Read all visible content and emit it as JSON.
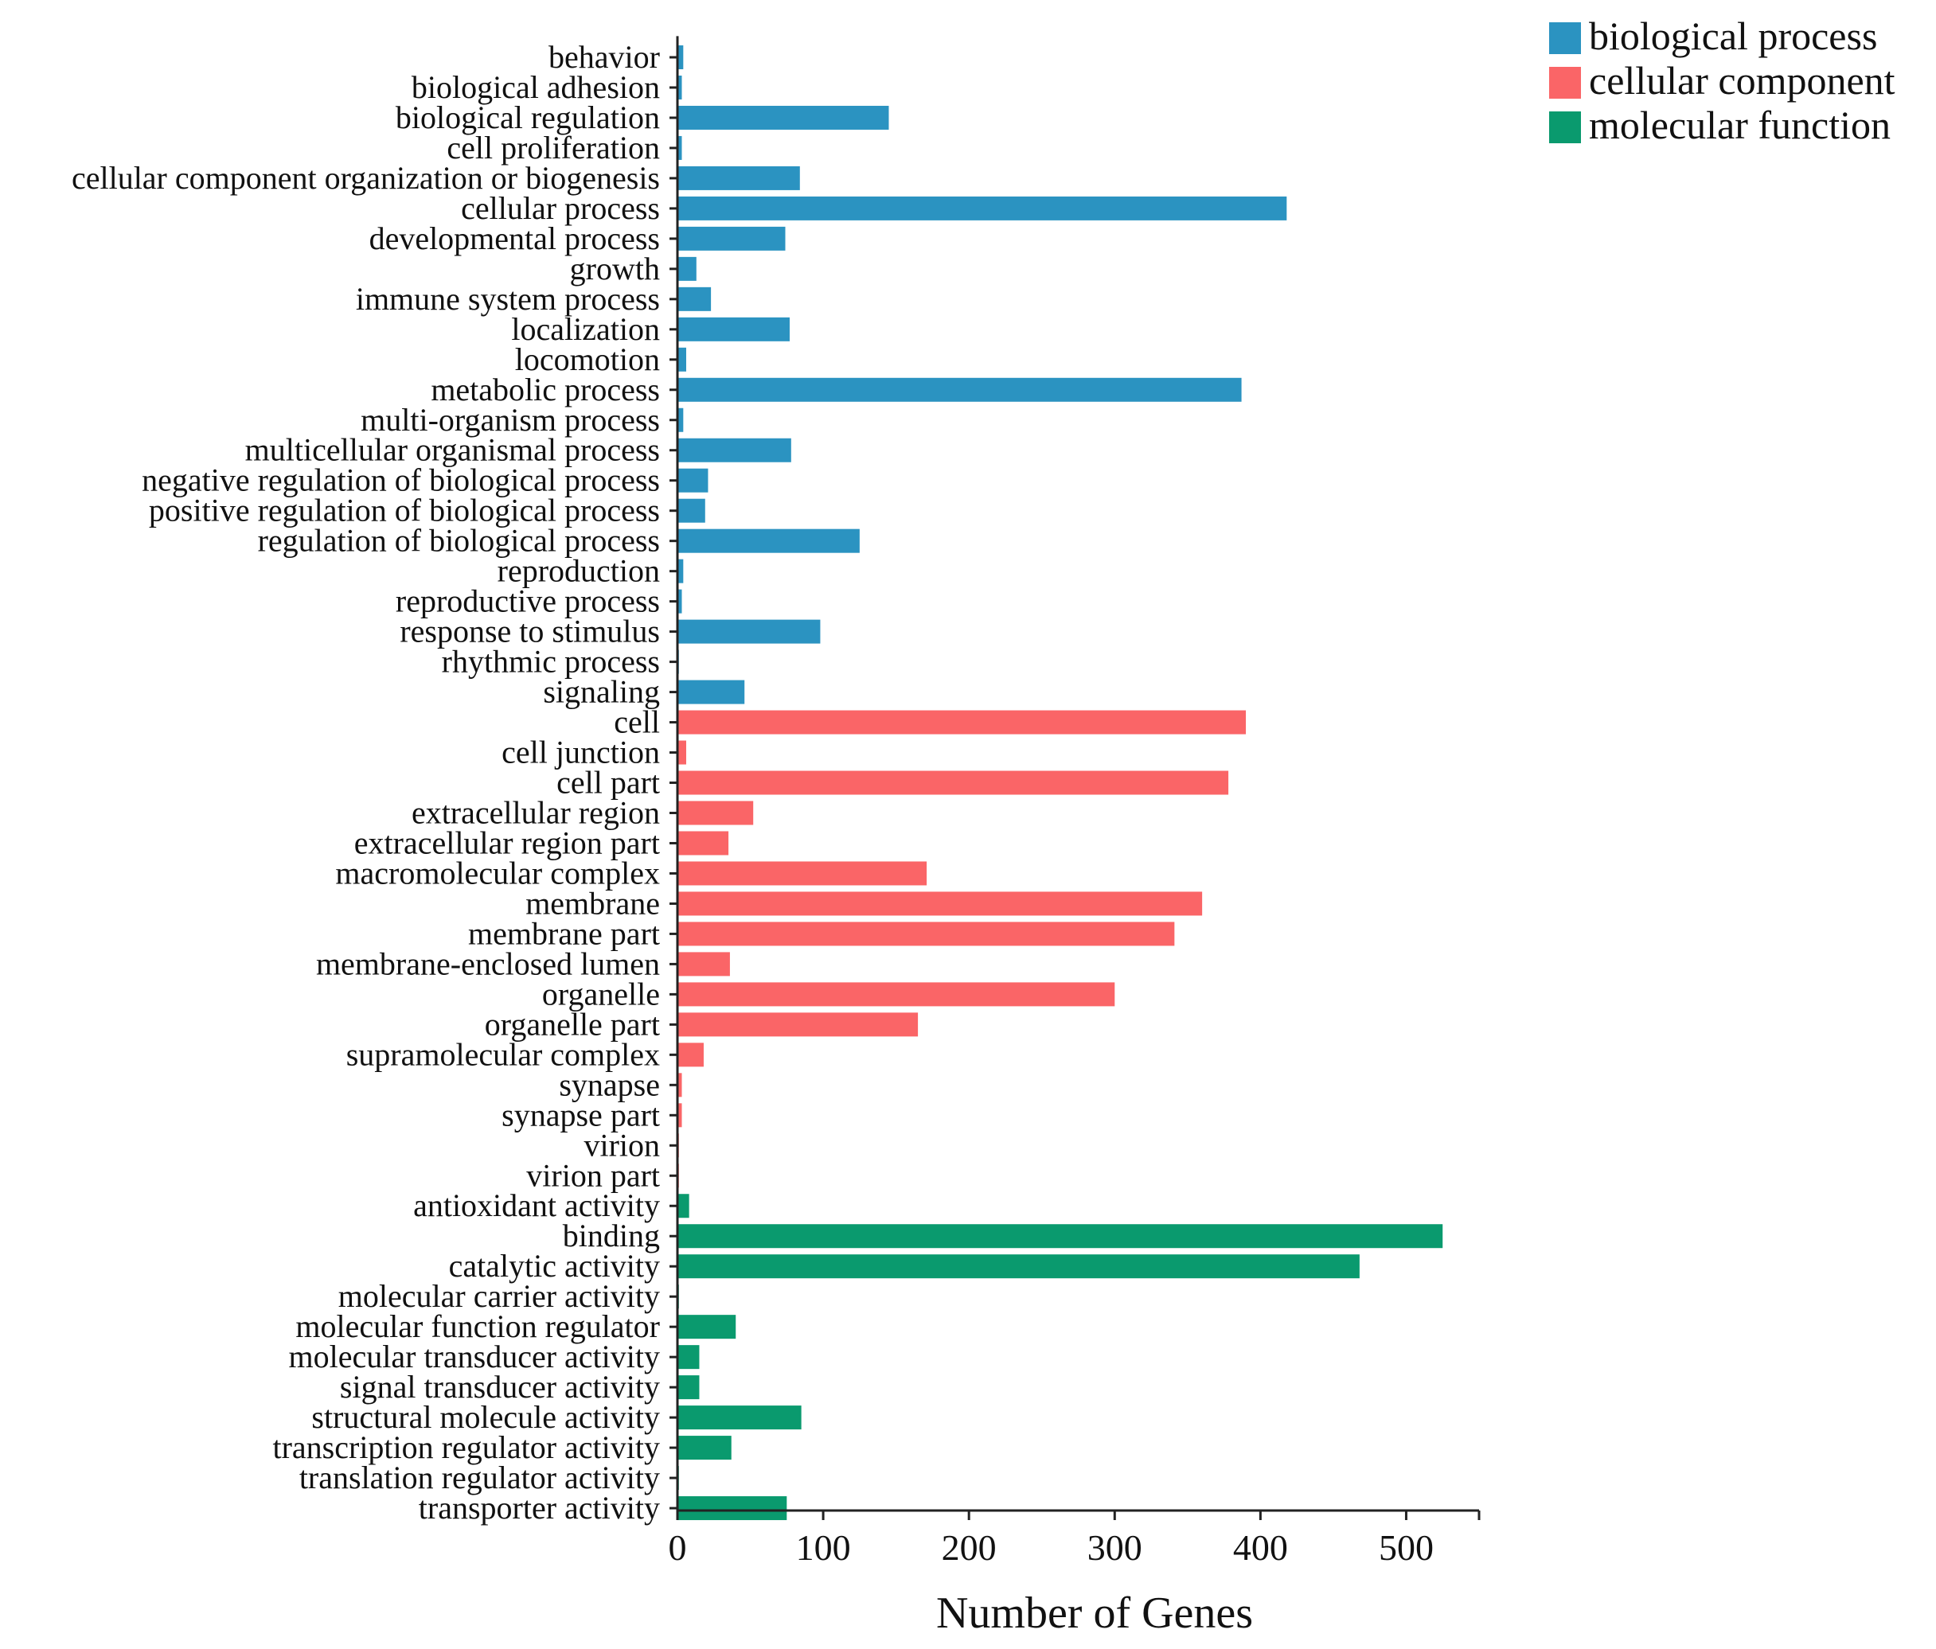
{
  "chart_data": {
    "type": "bar",
    "orientation": "horizontal",
    "title": "",
    "xlabel": "Number of Genes",
    "ylabel": "",
    "xlim": [
      0,
      550
    ],
    "xticks": [
      0,
      100,
      200,
      300,
      400,
      500
    ],
    "grid": false,
    "legend_position": "top-right",
    "series": [
      {
        "name": "biological process",
        "color": "#2B93C1",
        "categories": [
          "behavior",
          "biological adhesion",
          "biological regulation",
          "cell proliferation",
          "cellular component organization or biogenesis",
          "cellular process",
          "developmental process",
          "growth",
          "immune system process",
          "localization",
          "locomotion",
          "metabolic process",
          "multi-organism process",
          "multicellular organismal process",
          "negative regulation of biological process",
          "positive regulation of biological process",
          "regulation of biological process",
          "reproduction",
          "reproductive process",
          "response to stimulus",
          "rhythmic process",
          "signaling"
        ],
        "values": [
          4,
          3,
          145,
          3,
          84,
          418,
          74,
          13,
          23,
          77,
          6,
          387,
          4,
          78,
          21,
          19,
          125,
          4,
          3,
          98,
          1,
          46
        ]
      },
      {
        "name": "cellular component",
        "color": "#FA6567",
        "categories": [
          "cell",
          "cell junction",
          "cell part",
          "extracellular region",
          "extracellular region part",
          "macromolecular complex",
          "membrane",
          "membrane part",
          "membrane-enclosed lumen",
          "organelle",
          "organelle part",
          "supramolecular complex",
          "synapse",
          "synapse part",
          "virion",
          "virion part"
        ],
        "values": [
          390,
          6,
          378,
          52,
          35,
          171,
          360,
          341,
          36,
          300,
          165,
          18,
          3,
          3,
          1,
          1
        ]
      },
      {
        "name": "molecular function",
        "color": "#0A9A6E",
        "categories": [
          "antioxidant activity",
          "binding",
          "catalytic activity",
          "molecular carrier activity",
          "molecular function regulator",
          "molecular transducer activity",
          "signal transducer activity",
          "structural molecule activity",
          "transcription regulator activity",
          "translation regulator activity",
          "transporter activity"
        ],
        "values": [
          8,
          525,
          468,
          1,
          40,
          15,
          15,
          85,
          37,
          1,
          75
        ]
      }
    ]
  }
}
